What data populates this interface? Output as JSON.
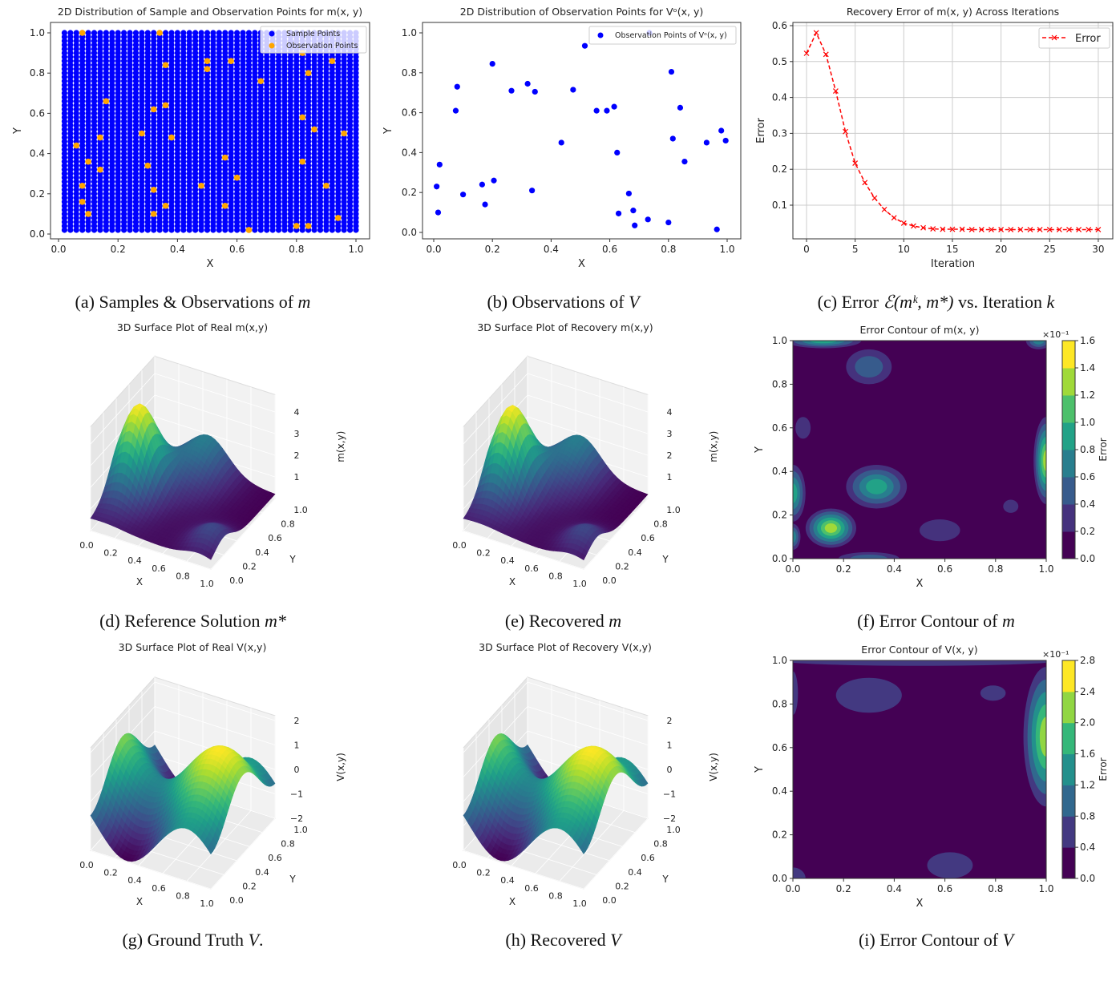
{
  "captions": [
    {
      "id": "a",
      "parts": [
        {
          "text": "(a) Samples & Observations of ",
          "italic": false
        },
        {
          "text": "m",
          "italic": true
        }
      ]
    },
    {
      "id": "b",
      "parts": [
        {
          "text": "(b) Observations of ",
          "italic": false
        },
        {
          "text": "V",
          "italic": true
        }
      ]
    },
    {
      "id": "c",
      "parts": [
        {
          "text": "(c) Error ",
          "italic": false
        },
        {
          "text": "ℰ(mᵏ, m*)",
          "italic": true
        },
        {
          "text": " vs. Iteration ",
          "italic": false
        },
        {
          "text": "k",
          "italic": true
        }
      ]
    },
    {
      "id": "d",
      "parts": [
        {
          "text": "(d) Reference Solution ",
          "italic": false
        },
        {
          "text": "m*",
          "italic": true
        }
      ]
    },
    {
      "id": "e",
      "parts": [
        {
          "text": "(e) Recovered ",
          "italic": false
        },
        {
          "text": "m",
          "italic": true
        }
      ]
    },
    {
      "id": "f",
      "parts": [
        {
          "text": "(f) Error Contour of ",
          "italic": false
        },
        {
          "text": "m",
          "italic": true
        }
      ]
    },
    {
      "id": "g",
      "parts": [
        {
          "text": "(g) Ground Truth ",
          "italic": false
        },
        {
          "text": "V",
          "italic": true
        },
        {
          "text": ".",
          "italic": false
        }
      ]
    },
    {
      "id": "h",
      "parts": [
        {
          "text": "(h) Recovered ",
          "italic": false
        },
        {
          "text": "V",
          "italic": true
        }
      ]
    },
    {
      "id": "i",
      "parts": [
        {
          "text": "(i) Error Contour of ",
          "italic": false
        },
        {
          "text": "V",
          "italic": true
        }
      ]
    }
  ],
  "chart_data": [
    {
      "id": "a",
      "type": "scatter",
      "title": "2D Distribution of Sample and Observation Points for m(x, y)",
      "xlabel": "X",
      "ylabel": "Y",
      "xticks": [
        "0.0",
        "0.2",
        "0.4",
        "0.6",
        "0.8",
        "1.0"
      ],
      "yticks": [
        "0.0",
        "0.2",
        "0.4",
        "0.6",
        "0.8",
        "1.0"
      ],
      "legend": {
        "position": "top-right",
        "entries": [
          "Sample Points",
          "Observation Points"
        ]
      },
      "series": [
        {
          "name": "Sample Points",
          "color": "#0000ff",
          "grid": {
            "start": 0.02,
            "stop": 1.0,
            "step": 0.02
          }
        },
        {
          "name": "Observation Points",
          "color": "#ffa500",
          "points": [
            [
              0.08,
              1.0
            ],
            [
              0.34,
              1.0
            ],
            [
              0.82,
              0.9
            ],
            [
              0.92,
              0.86
            ],
            [
              0.5,
              0.86
            ],
            [
              0.58,
              0.86
            ],
            [
              0.36,
              0.84
            ],
            [
              0.5,
              0.82
            ],
            [
              0.84,
              0.8
            ],
            [
              0.68,
              0.76
            ],
            [
              0.16,
              0.66
            ],
            [
              0.36,
              0.64
            ],
            [
              0.32,
              0.62
            ],
            [
              0.82,
              0.58
            ],
            [
              0.86,
              0.52
            ],
            [
              0.28,
              0.5
            ],
            [
              0.96,
              0.5
            ],
            [
              0.14,
              0.48
            ],
            [
              0.38,
              0.48
            ],
            [
              0.06,
              0.44
            ],
            [
              0.56,
              0.38
            ],
            [
              0.1,
              0.36
            ],
            [
              0.82,
              0.36
            ],
            [
              0.3,
              0.34
            ],
            [
              0.14,
              0.32
            ],
            [
              0.6,
              0.28
            ],
            [
              0.08,
              0.24
            ],
            [
              0.48,
              0.24
            ],
            [
              0.9,
              0.24
            ],
            [
              0.32,
              0.22
            ],
            [
              0.08,
              0.16
            ],
            [
              0.36,
              0.14
            ],
            [
              0.56,
              0.14
            ],
            [
              0.1,
              0.1
            ],
            [
              0.32,
              0.1
            ],
            [
              0.94,
              0.08
            ],
            [
              0.8,
              0.04
            ],
            [
              0.84,
              0.04
            ],
            [
              0.64,
              0.02
            ]
          ]
        }
      ]
    },
    {
      "id": "b",
      "type": "scatter",
      "title": "2D Distribution of Observation Points for Vᵒ(x, y)",
      "xlabel": "X",
      "ylabel": "Y",
      "xticks": [
        "0.0",
        "0.2",
        "0.4",
        "0.6",
        "0.8",
        "1.0"
      ],
      "yticks": [
        "0.0",
        "0.2",
        "0.4",
        "0.6",
        "0.8",
        "1.0"
      ],
      "legend": {
        "position": "top-right",
        "entries": [
          "Observation Points of Vᵒ(x, y)"
        ]
      },
      "series": [
        {
          "name": "Observation Points of Vᵒ(x, y)",
          "color": "#0000ff",
          "points": [
            [
              0.01,
              0.23
            ],
            [
              0.015,
              0.1
            ],
            [
              0.02,
              0.34
            ],
            [
              0.075,
              0.61
            ],
            [
              0.08,
              0.73
            ],
            [
              0.1,
              0.19
            ],
            [
              0.165,
              0.24
            ],
            [
              0.175,
              0.14
            ],
            [
              0.2,
              0.845
            ],
            [
              0.205,
              0.26
            ],
            [
              0.265,
              0.71
            ],
            [
              0.32,
              0.745
            ],
            [
              0.335,
              0.21
            ],
            [
              0.345,
              0.705
            ],
            [
              0.435,
              0.45
            ],
            [
              0.475,
              0.715
            ],
            [
              0.515,
              0.935
            ],
            [
              0.555,
              0.61
            ],
            [
              0.59,
              0.61
            ],
            [
              0.615,
              0.63
            ],
            [
              0.625,
              0.4
            ],
            [
              0.63,
              0.095
            ],
            [
              0.665,
              0.195
            ],
            [
              0.68,
              0.11
            ],
            [
              0.685,
              0.035
            ],
            [
              0.73,
              0.065
            ],
            [
              0.735,
              1.0
            ],
            [
              0.8,
              0.05
            ],
            [
              0.81,
              0.805
            ],
            [
              0.815,
              0.47
            ],
            [
              0.84,
              0.625
            ],
            [
              0.855,
              0.355
            ],
            [
              0.93,
              0.45
            ],
            [
              0.965,
              0.015
            ],
            [
              0.98,
              0.51
            ],
            [
              0.995,
              0.46
            ]
          ]
        }
      ]
    },
    {
      "id": "c",
      "type": "line",
      "title": "Recovery Error of m(x, y) Across Iterations",
      "xlabel": "Iteration",
      "ylabel": "Error",
      "xticks": [
        "0",
        "5",
        "10",
        "15",
        "20",
        "25",
        "30"
      ],
      "yticks": [
        "0.1",
        "0.2",
        "0.3",
        "0.4",
        "0.5",
        "0.6"
      ],
      "grid": true,
      "legend": {
        "position": "top-right",
        "entries": [
          "Error"
        ]
      },
      "series": [
        {
          "name": "Error",
          "color": "#ff0000",
          "linestyle": "dashed",
          "marker": "x",
          "x": [
            0,
            1,
            2,
            3,
            4,
            5,
            6,
            7,
            8,
            9,
            10,
            11,
            12,
            13,
            14,
            15,
            16,
            17,
            18,
            19,
            20,
            21,
            22,
            23,
            24,
            25,
            26,
            27,
            28,
            29,
            30
          ],
          "values": [
            0.523,
            0.58,
            0.52,
            0.418,
            0.305,
            0.217,
            0.163,
            0.12,
            0.088,
            0.065,
            0.05,
            0.042,
            0.037,
            0.034,
            0.033,
            0.033,
            0.033,
            0.032,
            0.032,
            0.032,
            0.032,
            0.032,
            0.032,
            0.032,
            0.032,
            0.032,
            0.032,
            0.032,
            0.032,
            0.032,
            0.032
          ]
        }
      ]
    },
    {
      "id": "d",
      "type": "surface",
      "title": "3D Surface Plot of Real m(x,y)",
      "xlabel": "X",
      "ylabel": "Y",
      "zlabel": "m(x,y)",
      "colormap": "viridis",
      "xticks": [
        "0.0",
        "0.2",
        "0.4",
        "0.6",
        "0.8",
        "1.0"
      ],
      "yticks": [
        "0.0",
        "0.2",
        "0.4",
        "0.6",
        "0.8",
        "1.0"
      ],
      "zticks": [
        "1",
        "2",
        "3",
        "4"
      ]
    },
    {
      "id": "e",
      "type": "surface",
      "title": "3D Surface Plot of Recovery m(x,y)",
      "xlabel": "X",
      "ylabel": "Y",
      "zlabel": "m(x,y)",
      "colormap": "viridis",
      "xticks": [
        "0.0",
        "0.2",
        "0.4",
        "0.6",
        "0.8",
        "1.0"
      ],
      "yticks": [
        "0.0",
        "0.2",
        "0.4",
        "0.6",
        "0.8",
        "1.0"
      ],
      "zticks": [
        "1",
        "2",
        "3",
        "4"
      ]
    },
    {
      "id": "f",
      "type": "contour",
      "title": "Error Contour of m(x, y)",
      "xlabel": "X",
      "ylabel": "Y",
      "colormap": "viridis",
      "xticks": [
        "0.0",
        "0.2",
        "0.4",
        "0.6",
        "0.8",
        "1.0"
      ],
      "yticks": [
        "0.0",
        "0.2",
        "0.4",
        "0.6",
        "0.8",
        "1.0"
      ],
      "colorbar": {
        "label": "Error",
        "scale": "×10⁻¹",
        "ticks": [
          "0.0",
          "0.2",
          "0.4",
          "0.6",
          "0.8",
          "1.0",
          "1.2",
          "1.4",
          "1.6"
        ]
      }
    },
    {
      "id": "g",
      "type": "surface",
      "title": "3D Surface Plot of Real V(x,y)",
      "xlabel": "X",
      "ylabel": "Y",
      "zlabel": "V(x,y)",
      "colormap": "viridis",
      "xticks": [
        "0.0",
        "0.2",
        "0.4",
        "0.6",
        "0.8",
        "1.0"
      ],
      "yticks": [
        "0.0",
        "0.2",
        "0.4",
        "0.6",
        "0.8",
        "1.0"
      ],
      "zticks": [
        "−2",
        "−1",
        "0",
        "1",
        "2"
      ]
    },
    {
      "id": "h",
      "type": "surface",
      "title": "3D Surface Plot of Recovery V(x,y)",
      "xlabel": "X",
      "ylabel": "Y",
      "zlabel": "V(x,y)",
      "colormap": "viridis",
      "xticks": [
        "0.0",
        "0.2",
        "0.4",
        "0.6",
        "0.8",
        "1.0"
      ],
      "yticks": [
        "0.0",
        "0.2",
        "0.4",
        "0.6",
        "0.8",
        "1.0"
      ],
      "zticks": [
        "−2",
        "−1",
        "0",
        "1",
        "2"
      ]
    },
    {
      "id": "i",
      "type": "contour",
      "title": "Error Contour of V(x, y)",
      "xlabel": "X",
      "ylabel": "Y",
      "colormap": "viridis",
      "xticks": [
        "0.0",
        "0.2",
        "0.4",
        "0.6",
        "0.8",
        "1.0"
      ],
      "yticks": [
        "0.0",
        "0.2",
        "0.4",
        "0.6",
        "0.8",
        "1.0"
      ],
      "colorbar": {
        "label": "Error",
        "scale": "×10⁻¹",
        "ticks": [
          "0.0",
          "0.4",
          "0.8",
          "1.2",
          "1.6",
          "2.0",
          "2.4",
          "2.8"
        ]
      }
    }
  ]
}
